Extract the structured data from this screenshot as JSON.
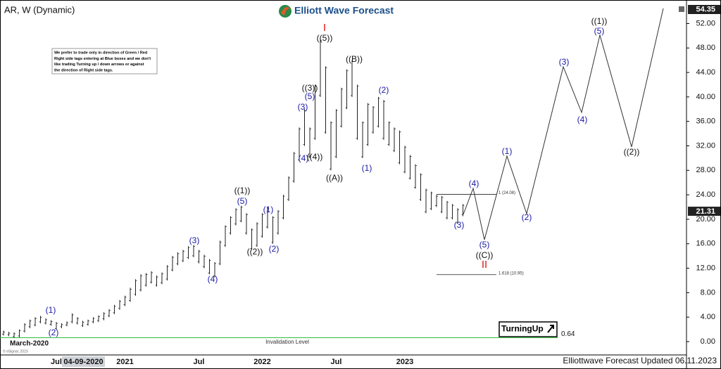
{
  "chart_data": {
    "type": "ohlc",
    "title": "AR, W (Dynamic)",
    "brand": "Elliott Wave Forecast",
    "note_lines": [
      "We prefer to trade only in direction of Green / Red",
      "Right side tags entering at Blue boxes and we don't",
      "like trading Turning up / down arrows or against",
      "the direction of Right side tags."
    ],
    "footer": "Elliottwave Forecast Updated 06.11.2023",
    "copyright": "© eSignal, 2023",
    "start_label": "March-2020",
    "cursor_date": "04-09-2020",
    "turning_label": "TurningUp",
    "categories": [
      null,
      null,
      null,
      null,
      null,
      null,
      null,
      null,
      null,
      null,
      "Jul",
      null,
      null,
      null,
      null,
      null,
      null,
      null,
      null,
      null,
      null,
      null,
      null,
      "2021",
      null,
      null,
      null,
      null,
      null,
      null,
      null,
      null,
      null,
      null,
      null,
      null,
      null,
      "Jul",
      null,
      null,
      null,
      null,
      null,
      null,
      null,
      null,
      null,
      null,
      null,
      "2022",
      null,
      null,
      null,
      null,
      null,
      null,
      null,
      null,
      null,
      null,
      null,
      null,
      null,
      "Jul",
      null,
      null,
      null,
      null,
      null,
      null,
      null,
      null,
      null,
      null,
      null,
      null,
      "2023",
      null,
      null,
      null,
      null,
      null,
      null,
      null,
      null,
      null,
      null,
      null
    ],
    "lows": [
      1.0,
      0.9,
      0.6,
      0.7,
      1.5,
      2.2,
      2.5,
      3.0,
      2.8,
      2.6,
      1.9,
      2.2,
      2.5,
      3.0,
      2.8,
      2.4,
      2.6,
      3.0,
      3.2,
      3.5,
      4.0,
      4.5,
      5.2,
      5.8,
      6.5,
      7.5,
      8.2,
      9.0,
      9.5,
      9.0,
      9.4,
      10.0,
      11.5,
      12.5,
      13.0,
      13.5,
      13.8,
      12.8,
      12.0,
      11.0,
      10.5,
      12.5,
      15.5,
      17.5,
      19.0,
      19.5,
      17.5,
      15.0,
      15.5,
      17.0,
      18.5,
      16.0,
      17.5,
      20.0,
      23.0,
      26.0,
      29.5,
      32.0,
      30.0,
      33.0,
      40.0,
      34.0,
      28.0,
      30.0,
      35.0,
      38.0,
      40.0,
      33.0,
      30.0,
      32.0,
      34.0,
      35.0,
      33.0,
      32.0,
      31.0,
      29.0,
      27.5,
      26.5,
      25.0,
      23.0,
      21.0,
      21.5,
      22.0,
      21.0,
      20.0,
      20.0,
      19.2,
      20.5
    ],
    "highs": [
      1.8,
      1.6,
      1.5,
      2.0,
      3.0,
      3.6,
      4.0,
      4.2,
      3.8,
      3.5,
      3.2,
      3.0,
      3.3,
      4.6,
      4.0,
      3.4,
      3.6,
      4.0,
      4.3,
      4.8,
      5.3,
      6.0,
      6.8,
      7.5,
      8.8,
      10.2,
      11.0,
      11.2,
      11.5,
      10.8,
      11.3,
      12.5,
      14.0,
      14.6,
      15.0,
      15.6,
      15.8,
      15.0,
      14.2,
      13.5,
      13.0,
      16.5,
      19.0,
      20.5,
      21.8,
      22.2,
      21.0,
      18.5,
      19.5,
      21.0,
      22.0,
      20.5,
      21.5,
      24.0,
      27.0,
      31.0,
      35.0,
      38.0,
      35.0,
      42.0,
      49.5,
      45.0,
      36.0,
      38.0,
      41.5,
      44.5,
      46.0,
      42.0,
      36.0,
      39.0,
      38.5,
      40.0,
      39.5,
      36.0,
      35.0,
      34.5,
      32.0,
      30.5,
      29.0,
      27.5,
      25.0,
      24.5,
      24.0,
      23.8,
      23.0,
      22.5,
      21.8,
      22.5
    ],
    "color": "#222222",
    "ylim": [
      -2.18,
      54.35
    ],
    "yticks": [
      {
        "value": 0,
        "label": "0.00"
      },
      {
        "value": 4,
        "label": "4.00"
      },
      {
        "value": 8,
        "label": "8.00"
      },
      {
        "value": 12,
        "label": "12.00"
      },
      {
        "value": 16,
        "label": "16.00"
      },
      {
        "value": 20,
        "label": "20.00"
      },
      {
        "value": 24,
        "label": "24.00"
      },
      {
        "value": 28,
        "label": "28.00"
      },
      {
        "value": 32,
        "label": "32.00"
      },
      {
        "value": 36,
        "label": "36.00"
      },
      {
        "value": 40,
        "label": "40.00"
      },
      {
        "value": 44,
        "label": "44.00"
      },
      {
        "value": 48,
        "label": "48.00"
      },
      {
        "value": 52,
        "label": "52.00"
      }
    ],
    "last_price": 21.31,
    "invalidation": 0.64,
    "invalidation_label": "Invalidation Level",
    "fib_levels": [
      {
        "value": 24.08,
        "label": "1 (24.08)"
      },
      {
        "value": 10.95,
        "label": "1.618 (10.95)"
      }
    ],
    "wave_labels": [
      "(1)",
      "(2)",
      "(3)",
      "(4)",
      "((1))",
      "(5)",
      "((2))",
      "(1)",
      "(2)",
      "((5))",
      "((3))",
      "(5)",
      "(3)",
      "(4)",
      "((4))",
      "((A))",
      "((B))",
      "(2)",
      "(1)",
      "(3)",
      "(4)",
      "(5)",
      "((C))",
      "(1)",
      "(2)",
      "(3)",
      "(4)",
      "((1))",
      "(5)",
      "((2))"
    ],
    "degree_marks": [
      "I",
      "II"
    ]
  }
}
